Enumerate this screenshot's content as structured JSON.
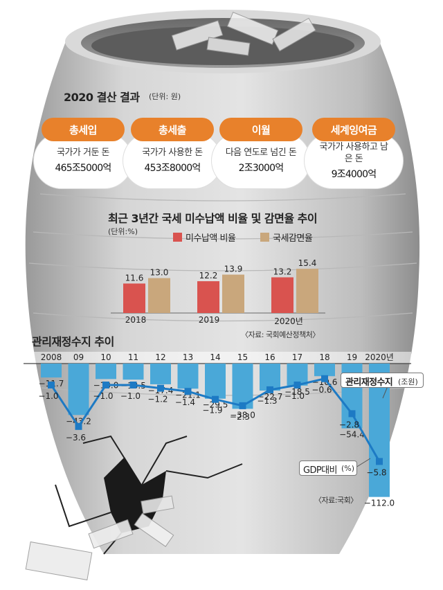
{
  "settlement": {
    "title": "2020 결산 결과",
    "unit": "(단위: 원)",
    "cards": [
      {
        "label": "총세입",
        "desc": "국가가 거둔 돈",
        "value": "465조5000억"
      },
      {
        "label": "총세출",
        "desc": "국가가 사용한 돈",
        "value": "453조8000억"
      },
      {
        "label": "이월",
        "desc": "다음 연도로 넘긴 돈",
        "value": "2조3000억"
      },
      {
        "label": "세계잉여금",
        "desc": "국가가 사용하고 남은 돈",
        "value": "9조4000억"
      }
    ]
  },
  "colors": {
    "orange": "#e8812b",
    "red_bar": "#d9534f",
    "tan_bar": "#c9a77c",
    "blue_bar": "#4aa8d8",
    "line": "#1d7ac4",
    "jar": "#cfcfcf"
  },
  "chart_data": [
    {
      "type": "bar",
      "title": "최근 3년간 국세 미수납액 비율 및 감면율 추이",
      "unit": "(단위:%)",
      "categories": [
        "2018",
        "2019",
        "2020년"
      ],
      "series": [
        {
          "name": "미수납액 비율",
          "values": [
            11.6,
            12.2,
            13.2
          ]
        },
        {
          "name": "국세감면율",
          "values": [
            13.0,
            13.9,
            15.4
          ]
        }
      ],
      "source": "〈자료: 국회예산정책처〉"
    },
    {
      "type": "bar",
      "title": "관리재정수지 추이",
      "categories": [
        "2008",
        "09",
        "10",
        "11",
        "12",
        "13",
        "14",
        "15",
        "16",
        "17",
        "18",
        "19",
        "2020년"
      ],
      "series": [
        {
          "name": "관리재정수지 (조원)",
          "values": [
            -11.7,
            -43.2,
            -13.0,
            -13.5,
            -17.4,
            -21.1,
            -29.5,
            -38.0,
            -22.7,
            -18.5,
            -10.6,
            -54.4,
            -112.0
          ]
        },
        {
          "name": "GDP대비 (%)",
          "values": [
            -1.0,
            -3.6,
            -1.0,
            -1.0,
            -1.2,
            -1.4,
            -1.9,
            -2.3,
            -1.3,
            -1.0,
            -0.6,
            -2.8,
            -5.8
          ]
        }
      ],
      "bar_labels": [
        "−11.7",
        "−43.2",
        "−13.0",
        "−13.5",
        "−17.4",
        "−21.1",
        "−29.5",
        "−38.0",
        "−22.7",
        "−18.5",
        "−10.6",
        "−54.4",
        "−112.0"
      ],
      "line_labels": [
        "−1.0",
        "−3.6",
        "−1.0",
        "−1.0",
        "−1.2",
        "−1.4",
        "−1.9",
        "−2.3",
        "−1.3",
        "−1.0",
        "−0.6",
        "−2.8",
        "−5.8"
      ],
      "legend": {
        "bar": "관리재정수지",
        "bar_unit": "(조원)",
        "line": "GDP대비",
        "line_unit": "(%)"
      },
      "source": "〈자료:국회〉"
    }
  ]
}
